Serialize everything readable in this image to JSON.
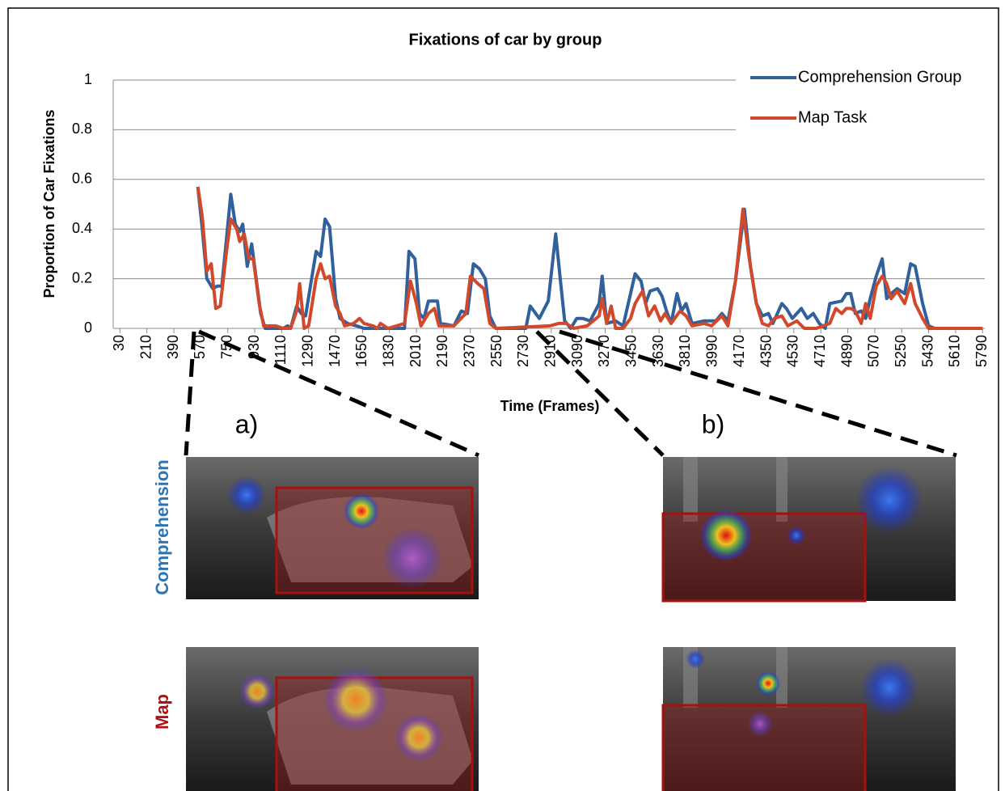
{
  "chart_data": {
    "type": "line",
    "title": "Fixations of car by group",
    "x_label": "Time (Frames)",
    "y_label": "Proportion of Car Fixations",
    "xlim": [
      -15,
      5805
    ],
    "ylim": [
      0,
      1
    ],
    "xticks": [
      30,
      210,
      390,
      570,
      750,
      930,
      1110,
      1290,
      1470,
      1650,
      1830,
      2010,
      2190,
      2370,
      2550,
      2730,
      2910,
      3090,
      3270,
      3450,
      3630,
      3810,
      3990,
      4170,
      4350,
      4530,
      4710,
      4890,
      5070,
      5250,
      5430,
      5610,
      5790
    ],
    "yticks": [
      0,
      0.2,
      0.4,
      0.6,
      0.8,
      1
    ],
    "grid": true,
    "legend": "top-right",
    "series": [
      {
        "name": "Comprehension Group",
        "color": "#31619d",
        "x": [
          550,
          580,
          610,
          650,
          680,
          710,
          740,
          770,
          800,
          830,
          850,
          880,
          910,
          940,
          970,
          1000,
          1120,
          1150,
          1170,
          1210,
          1240,
          1270,
          1310,
          1340,
          1370,
          1400,
          1430,
          1470,
          1500,
          1550,
          1610,
          1660,
          1930,
          1960,
          2000,
          2030,
          2060,
          2090,
          2150,
          2170,
          2260,
          2310,
          2350,
          2390,
          2430,
          2470,
          2500,
          2540,
          2740,
          2770,
          2830,
          2890,
          2940,
          2970,
          3000,
          3040,
          3080,
          3120,
          3170,
          3230,
          3250,
          3280,
          3340,
          3390,
          3470,
          3510,
          3540,
          3570,
          3620,
          3650,
          3680,
          3710,
          3750,
          3780,
          3810,
          3850,
          3930,
          4010,
          4050,
          4090,
          4140,
          4200,
          4240,
          4280,
          4320,
          4360,
          4390,
          4450,
          4480,
          4520,
          4580,
          4620,
          4660,
          4700,
          4740,
          4770,
          4850,
          4880,
          4910,
          4940,
          4980,
          5010,
          5040,
          5080,
          5120,
          5150,
          5180,
          5220,
          5270,
          5310,
          5340,
          5390,
          5430,
          5470,
          5790
        ],
        "values": [
          0.57,
          0.4,
          0.2,
          0.16,
          0.17,
          0.17,
          0.35,
          0.54,
          0.42,
          0.39,
          0.42,
          0.25,
          0.34,
          0.2,
          0.06,
          0,
          0,
          0.01,
          0,
          0.09,
          0.06,
          0.05,
          0.2,
          0.31,
          0.29,
          0.44,
          0.41,
          0.12,
          0.04,
          0.02,
          0.01,
          0,
          0,
          0.31,
          0.28,
          0.06,
          0.04,
          0.11,
          0.11,
          0.02,
          0.01,
          0.07,
          0.06,
          0.26,
          0.24,
          0.2,
          0.05,
          0,
          0,
          0.09,
          0.04,
          0.11,
          0.38,
          0.2,
          0.03,
          0,
          0.04,
          0.04,
          0.03,
          0.1,
          0.21,
          0.02,
          0.03,
          0.01,
          0.22,
          0.19,
          0.1,
          0.15,
          0.16,
          0.13,
          0.07,
          0.02,
          0.14,
          0.07,
          0.1,
          0.02,
          0.03,
          0.03,
          0.06,
          0.03,
          0.19,
          0.48,
          0.25,
          0.1,
          0.05,
          0.06,
          0.02,
          0.1,
          0.08,
          0.04,
          0.08,
          0.04,
          0.06,
          0.02,
          0,
          0.1,
          0.11,
          0.14,
          0.14,
          0.06,
          0.07,
          0.04,
          0.12,
          0.21,
          0.28,
          0.12,
          0.14,
          0.16,
          0.14,
          0.26,
          0.25,
          0.1,
          0.01,
          0,
          0
        ]
      },
      {
        "name": "Map Task",
        "color": "#d2482a",
        "x": [
          550,
          580,
          610,
          640,
          670,
          700,
          740,
          770,
          810,
          830,
          860,
          890,
          920,
          960,
          990,
          1070,
          1120,
          1170,
          1210,
          1230,
          1260,
          1290,
          1340,
          1370,
          1400,
          1430,
          1470,
          1500,
          1530,
          1590,
          1630,
          1660,
          1720,
          1750,
          1770,
          1820,
          1930,
          1970,
          2010,
          2040,
          2090,
          2130,
          2160,
          2260,
          2340,
          2370,
          2420,
          2460,
          2500,
          2540,
          2900,
          2960,
          3010,
          3060,
          3150,
          3230,
          3250,
          3280,
          3310,
          3340,
          3390,
          3440,
          3470,
          3520,
          3560,
          3600,
          3640,
          3670,
          3710,
          3770,
          3810,
          3850,
          3930,
          3980,
          4050,
          4090,
          4140,
          4190,
          4230,
          4280,
          4320,
          4360,
          4400,
          4450,
          4490,
          4550,
          4600,
          4680,
          4770,
          4810,
          4850,
          4880,
          4910,
          4940,
          4980,
          5010,
          5040,
          5080,
          5120,
          5150,
          5180,
          5220,
          5270,
          5310,
          5340,
          5390,
          5430,
          5790
        ],
        "values": [
          0.57,
          0.45,
          0.23,
          0.26,
          0.08,
          0.09,
          0.3,
          0.44,
          0.4,
          0.35,
          0.38,
          0.28,
          0.28,
          0.1,
          0.01,
          0.01,
          0,
          0,
          0.07,
          0.18,
          0,
          0.01,
          0.2,
          0.26,
          0.2,
          0.21,
          0.09,
          0.06,
          0.01,
          0.02,
          0.04,
          0.02,
          0.01,
          0,
          0.02,
          0,
          0.02,
          0.19,
          0.1,
          0.01,
          0.06,
          0.08,
          0.01,
          0.01,
          0.06,
          0.21,
          0.18,
          0.16,
          0.02,
          0,
          0.01,
          0.02,
          0.02,
          0,
          0.01,
          0.05,
          0.12,
          0.02,
          0.09,
          0,
          0,
          0.04,
          0.1,
          0.15,
          0.05,
          0.09,
          0.03,
          0.06,
          0.02,
          0.07,
          0.05,
          0.01,
          0.02,
          0.01,
          0.05,
          0.01,
          0.19,
          0.48,
          0.29,
          0.1,
          0.02,
          0.01,
          0.04,
          0.05,
          0.01,
          0.03,
          0,
          0,
          0.02,
          0.08,
          0.06,
          0.08,
          0.08,
          0.07,
          0.02,
          0.1,
          0.04,
          0.17,
          0.21,
          0.18,
          0.12,
          0.15,
          0.1,
          0.18,
          0.1,
          0.04,
          0,
          0
        ]
      }
    ]
  },
  "panels": {
    "labels": [
      "a)",
      "b)"
    ],
    "rows": [
      "Comprehension",
      "Map"
    ]
  }
}
